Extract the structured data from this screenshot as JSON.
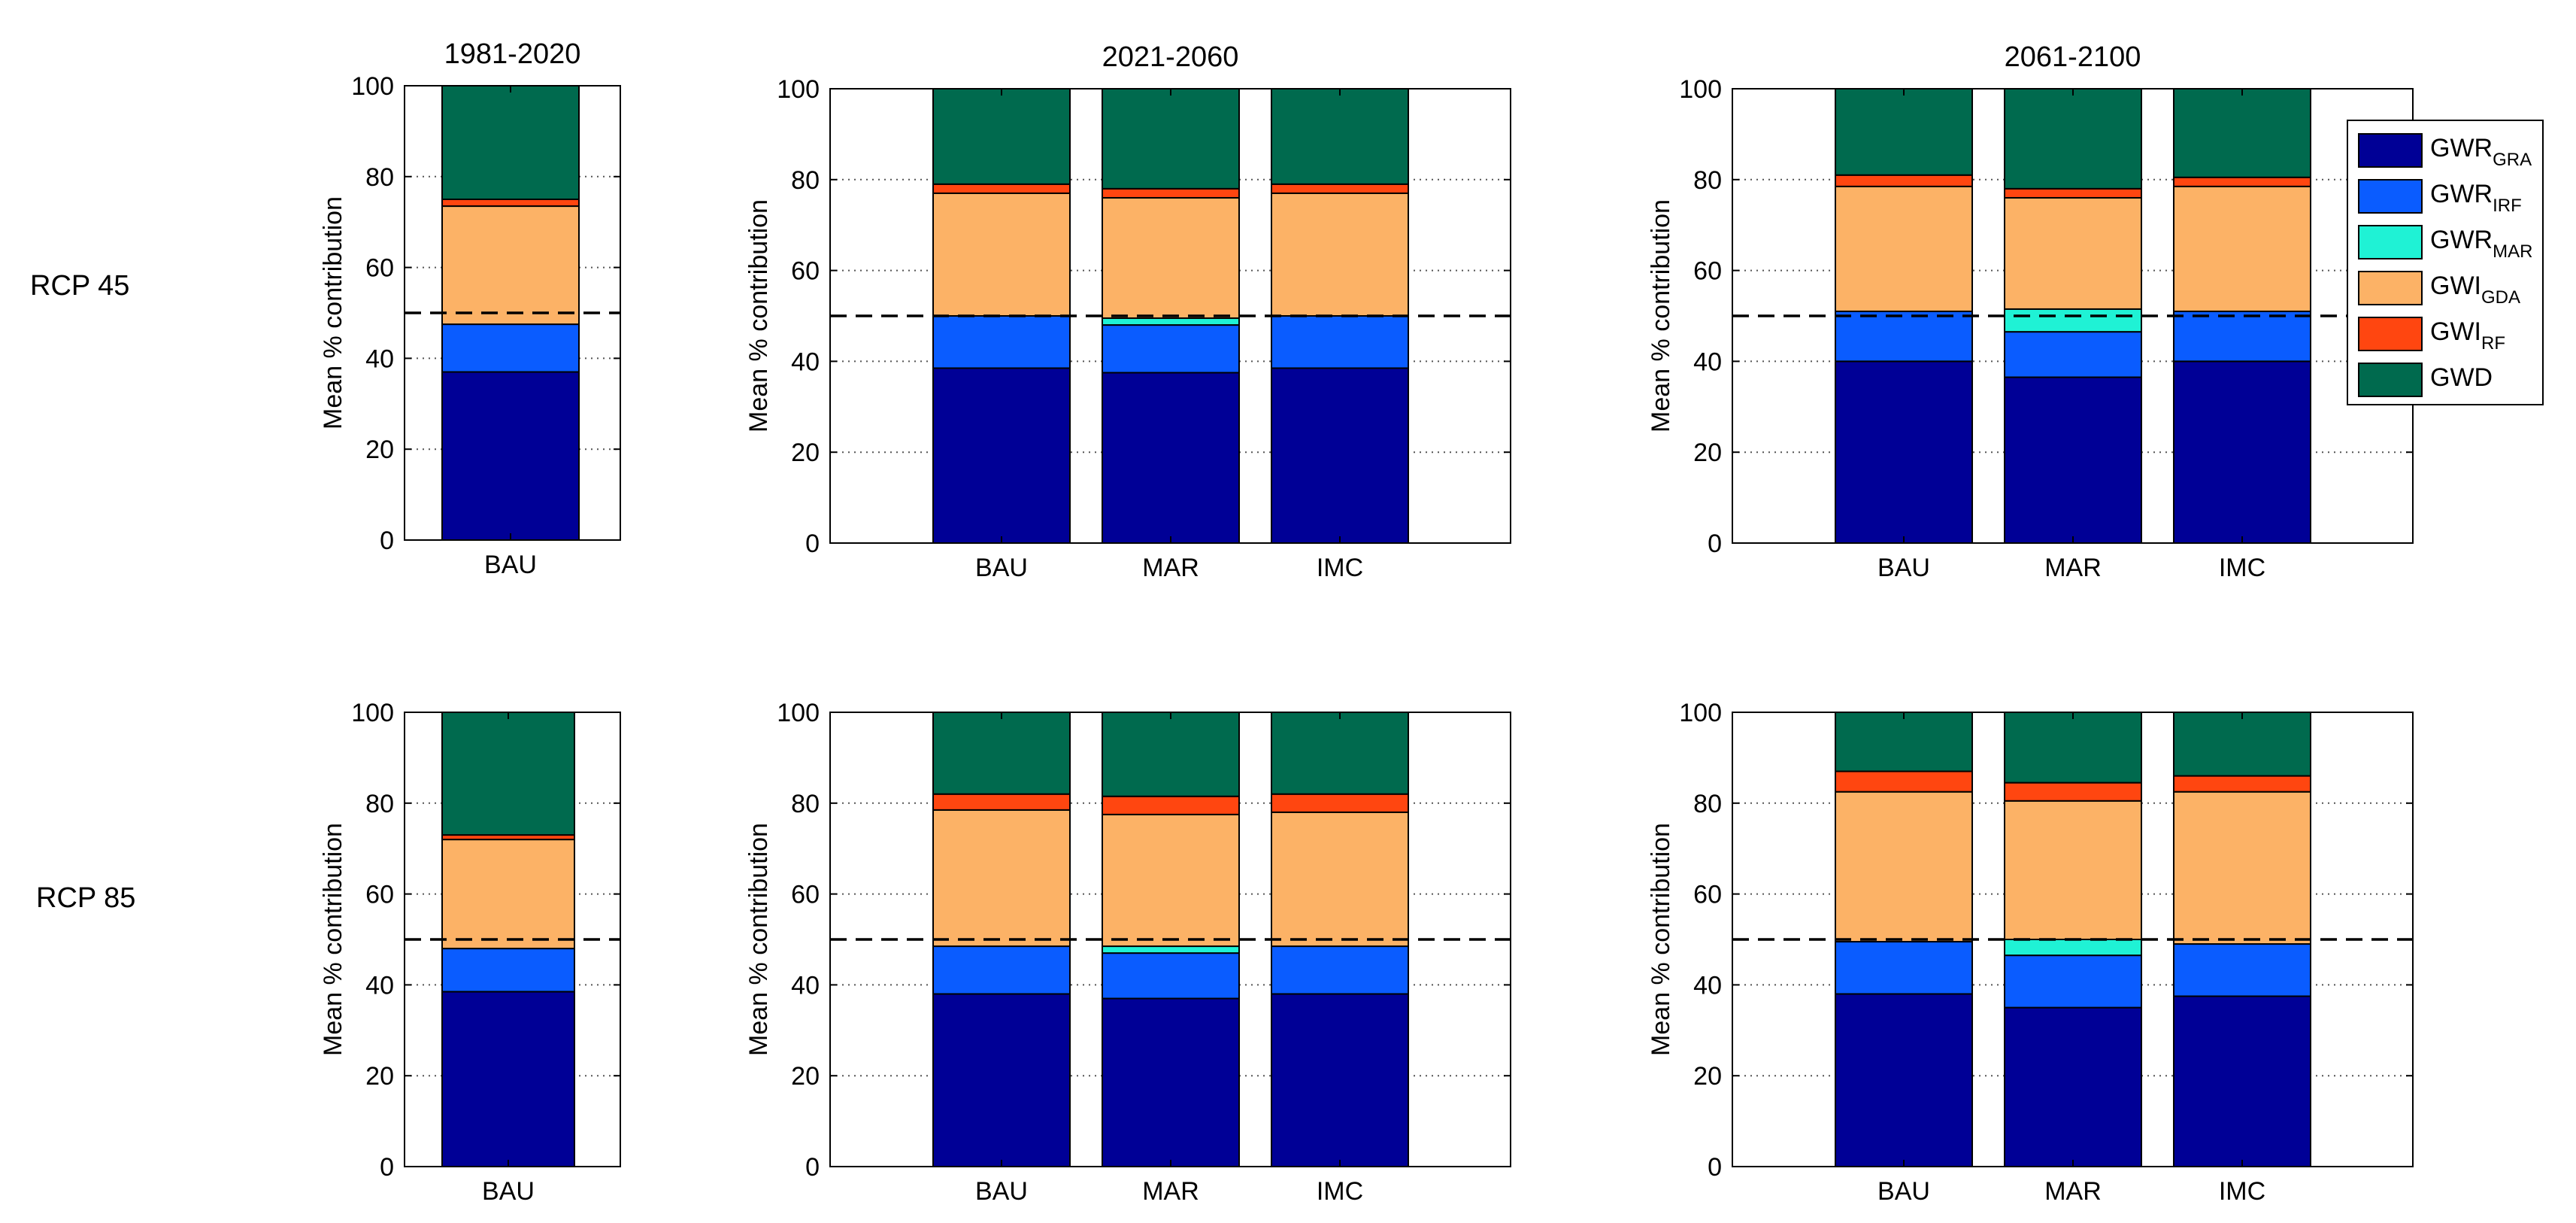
{
  "row_labels": [
    "RCP 45",
    "RCP 85"
  ],
  "colors": {
    "GWR_GRA": "#000096",
    "GWR_IRF": "#0a5cff",
    "GWR_MAR": "#1ff2d5",
    "GWI_GDA": "#fcb266",
    "GWI_RF": "#ff4610",
    "GWD": "#006a4e"
  },
  "legend": [
    {
      "key": "GWR_GRA",
      "base": "GWR",
      "sub": "GRA"
    },
    {
      "key": "GWR_IRF",
      "base": "GWR",
      "sub": "IRF"
    },
    {
      "key": "GWR_MAR",
      "base": "GWR",
      "sub": "MAR"
    },
    {
      "key": "GWI_GDA",
      "base": "GWI",
      "sub": "GDA"
    },
    {
      "key": "GWI_RF",
      "base": "GWI",
      "sub": "RF"
    },
    {
      "key": "GWD",
      "base": "GWD",
      "sub": ""
    }
  ],
  "chart_data": [
    {
      "type": "bar",
      "stacked": true,
      "row": "RCP 45",
      "title": "1981-2020",
      "ylabel": "Mean % contribution",
      "ylim": [
        0,
        100
      ],
      "yticks": [
        0,
        20,
        40,
        60,
        80,
        100
      ],
      "grid": "y-dotted",
      "reference_line": 50,
      "categories": [
        "BAU"
      ],
      "series": [
        {
          "key": "GWR_GRA",
          "values": [
            37
          ]
        },
        {
          "key": "GWR_IRF",
          "values": [
            10.5
          ]
        },
        {
          "key": "GWR_MAR",
          "values": [
            0
          ]
        },
        {
          "key": "GWI_GDA",
          "values": [
            26
          ]
        },
        {
          "key": "GWI_RF",
          "values": [
            1.5
          ]
        },
        {
          "key": "GWD",
          "values": [
            25
          ]
        }
      ]
    },
    {
      "type": "bar",
      "stacked": true,
      "row": "RCP 45",
      "title": "2021-2060",
      "ylabel": "Mean % contribution",
      "ylim": [
        0,
        100
      ],
      "yticks": [
        0,
        20,
        40,
        60,
        80,
        100
      ],
      "grid": "y-dotted",
      "reference_line": 50,
      "categories": [
        "BAU",
        "MAR",
        "IMC"
      ],
      "series": [
        {
          "key": "GWR_GRA",
          "values": [
            38.5,
            37.5,
            38.5
          ]
        },
        {
          "key": "GWR_IRF",
          "values": [
            11.5,
            10.5,
            11.5
          ]
        },
        {
          "key": "GWR_MAR",
          "values": [
            0,
            1.5,
            0
          ]
        },
        {
          "key": "GWI_GDA",
          "values": [
            27,
            26.5,
            27
          ]
        },
        {
          "key": "GWI_RF",
          "values": [
            2,
            2,
            2
          ]
        },
        {
          "key": "GWD",
          "values": [
            21,
            22,
            21
          ]
        }
      ]
    },
    {
      "type": "bar",
      "stacked": true,
      "row": "RCP 45",
      "title": "2061-2100",
      "ylabel": "Mean % contribution",
      "ylim": [
        0,
        100
      ],
      "yticks": [
        0,
        20,
        40,
        60,
        80,
        100
      ],
      "grid": "y-dotted",
      "reference_line": 50,
      "categories": [
        "BAU",
        "MAR",
        "IMC"
      ],
      "series": [
        {
          "key": "GWR_GRA",
          "values": [
            40,
            36.5,
            40
          ]
        },
        {
          "key": "GWR_IRF",
          "values": [
            11,
            10,
            11
          ]
        },
        {
          "key": "GWR_MAR",
          "values": [
            0,
            5,
            0
          ]
        },
        {
          "key": "GWI_GDA",
          "values": [
            27.5,
            24.5,
            27.5
          ]
        },
        {
          "key": "GWI_RF",
          "values": [
            2.5,
            2,
            2
          ]
        },
        {
          "key": "GWD",
          "values": [
            19,
            22,
            19.5
          ]
        }
      ]
    },
    {
      "type": "bar",
      "stacked": true,
      "row": "RCP 85",
      "title": "",
      "ylabel": "Mean % contribution",
      "ylim": [
        0,
        100
      ],
      "yticks": [
        0,
        20,
        40,
        60,
        80,
        100
      ],
      "grid": "y-dotted",
      "reference_line": 50,
      "categories": [
        "BAU"
      ],
      "series": [
        {
          "key": "GWR_GRA",
          "values": [
            38.5
          ]
        },
        {
          "key": "GWR_IRF",
          "values": [
            9.5
          ]
        },
        {
          "key": "GWR_MAR",
          "values": [
            0
          ]
        },
        {
          "key": "GWI_GDA",
          "values": [
            24
          ]
        },
        {
          "key": "GWI_RF",
          "values": [
            1
          ]
        },
        {
          "key": "GWD",
          "values": [
            27
          ]
        }
      ]
    },
    {
      "type": "bar",
      "stacked": true,
      "row": "RCP 85",
      "title": "",
      "ylabel": "Mean % contribution",
      "ylim": [
        0,
        100
      ],
      "yticks": [
        0,
        20,
        40,
        60,
        80,
        100
      ],
      "grid": "y-dotted",
      "reference_line": 50,
      "categories": [
        "BAU",
        "MAR",
        "IMC"
      ],
      "series": [
        {
          "key": "GWR_GRA",
          "values": [
            38,
            37,
            38
          ]
        },
        {
          "key": "GWR_IRF",
          "values": [
            10.5,
            10,
            10.5
          ]
        },
        {
          "key": "GWR_MAR",
          "values": [
            0,
            1.5,
            0
          ]
        },
        {
          "key": "GWI_GDA",
          "values": [
            30,
            29,
            29.5
          ]
        },
        {
          "key": "GWI_RF",
          "values": [
            3.5,
            4,
            4
          ]
        },
        {
          "key": "GWD",
          "values": [
            18,
            18.5,
            18
          ]
        }
      ]
    },
    {
      "type": "bar",
      "stacked": true,
      "row": "RCP 85",
      "title": "",
      "ylabel": "Mean % contribution",
      "ylim": [
        0,
        100
      ],
      "yticks": [
        0,
        20,
        40,
        60,
        80,
        100
      ],
      "grid": "y-dotted",
      "reference_line": 50,
      "categories": [
        "BAU",
        "MAR",
        "IMC"
      ],
      "series": [
        {
          "key": "GWR_GRA",
          "values": [
            38,
            35,
            37.5
          ]
        },
        {
          "key": "GWR_IRF",
          "values": [
            11.5,
            11.5,
            11.5
          ]
        },
        {
          "key": "GWR_MAR",
          "values": [
            0,
            3.5,
            0
          ]
        },
        {
          "key": "GWI_GDA",
          "values": [
            33,
            30.5,
            33.5
          ]
        },
        {
          "key": "GWI_RF",
          "values": [
            4.5,
            4,
            3.5
          ]
        },
        {
          "key": "GWD",
          "values": [
            13,
            15.5,
            14
          ]
        }
      ]
    }
  ]
}
